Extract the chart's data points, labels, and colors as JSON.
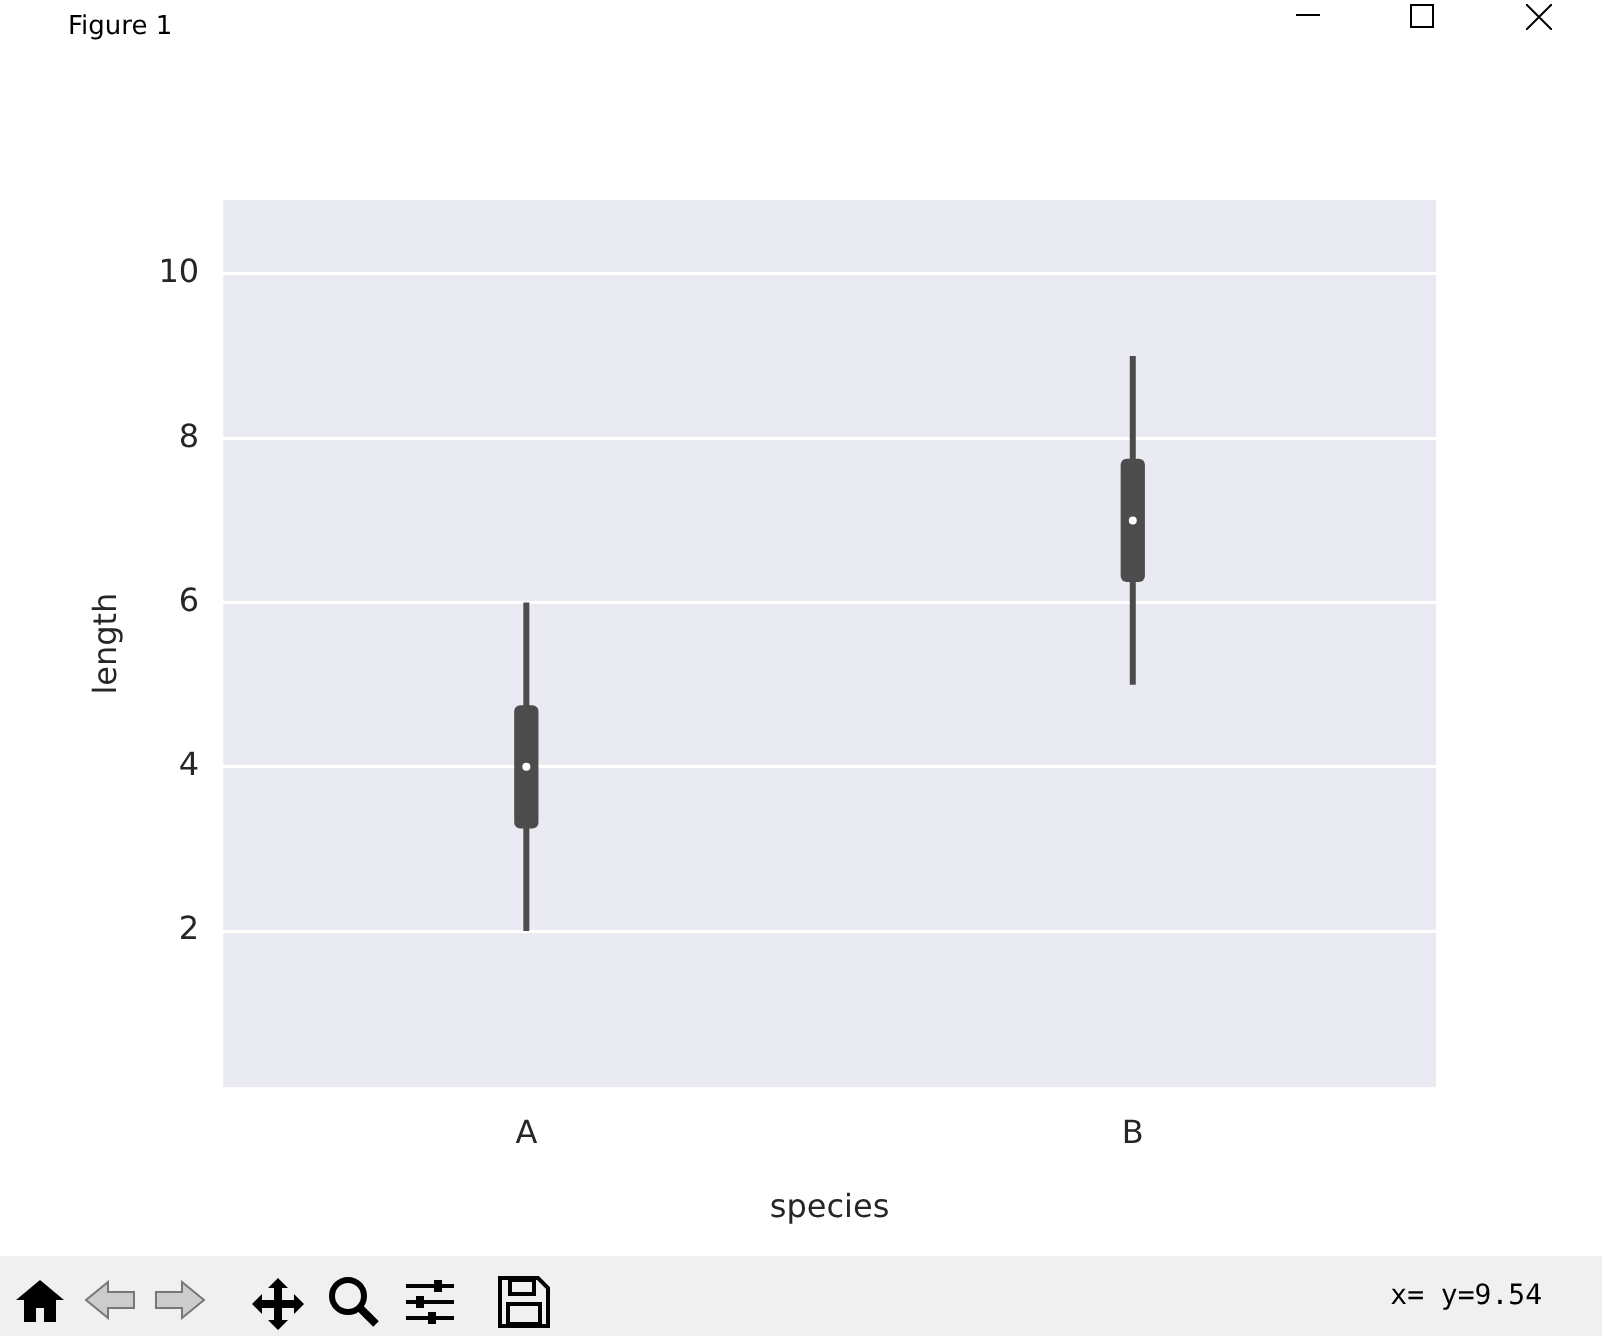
{
  "chart_data": {
    "type": "box",
    "xlabel": "species",
    "ylabel": "length",
    "categories": [
      "A",
      "B"
    ],
    "boxes": [
      {
        "low": 2,
        "q1": 3.25,
        "median": 4,
        "q3": 4.75,
        "high": 6
      },
      {
        "low": 5,
        "q1": 6.25,
        "median": 7,
        "q3": 7.75,
        "high": 9
      }
    ],
    "color": "#4c4c4c",
    "ylim": [
      0.1,
      10.9
    ],
    "yticks": [
      2,
      4,
      6,
      8,
      10
    ],
    "grid": "y",
    "legend": false,
    "annotations": [
      "Figure 1",
      "x= y=9.54"
    ]
  }
}
